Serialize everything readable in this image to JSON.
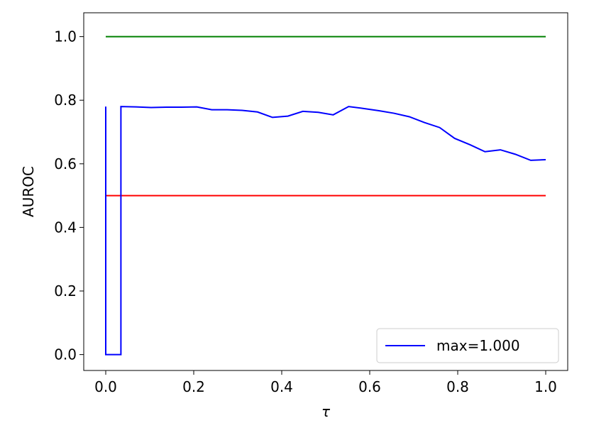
{
  "chart_data": {
    "type": "line",
    "xlabel": "τ",
    "ylabel": "AUROC",
    "xlim": [
      -0.05,
      1.05
    ],
    "ylim": [
      -0.05,
      1.075
    ],
    "xticks": [
      {
        "value": 0,
        "label": "0.0"
      },
      {
        "value": 0.2,
        "label": "0.2"
      },
      {
        "value": 0.4,
        "label": "0.4"
      },
      {
        "value": 0.6,
        "label": "0.6"
      },
      {
        "value": 0.8,
        "label": "0.8"
      },
      {
        "value": 1,
        "label": "1.0"
      }
    ],
    "yticks": [
      {
        "value": 0,
        "label": "0.0"
      },
      {
        "value": 0.2,
        "label": "0.2"
      },
      {
        "value": 0.4,
        "label": "0.4"
      },
      {
        "value": 0.6,
        "label": "0.6"
      },
      {
        "value": 0.8,
        "label": "0.8"
      },
      {
        "value": 1,
        "label": "1.0"
      }
    ],
    "series": [
      {
        "name": "max=1.000",
        "color": "#0000ff",
        "x": [
          0,
          0,
          0.0345,
          0.0345,
          0.069,
          0.103,
          0.138,
          0.172,
          0.207,
          0.241,
          0.276,
          0.31,
          0.345,
          0.379,
          0.414,
          0.448,
          0.483,
          0.517,
          0.552,
          0.586,
          0.621,
          0.655,
          0.69,
          0.724,
          0.759,
          0.793,
          0.828,
          0.862,
          0.897,
          0.931,
          0.966,
          1.0
        ],
        "values": [
          0.78,
          0,
          0,
          0.78,
          0.779,
          0.777,
          0.778,
          0.778,
          0.779,
          0.77,
          0.77,
          0.768,
          0.763,
          0.746,
          0.75,
          0.765,
          0.762,
          0.754,
          0.78,
          0.774,
          0.767,
          0.759,
          0.748,
          0.73,
          0.714,
          0.68,
          0.66,
          0.638,
          0.644,
          0.63,
          0.611,
          0.613
        ]
      }
    ],
    "reference_lines": [
      {
        "value": 1,
        "color": "#008000",
        "x": [
          0,
          1
        ]
      },
      {
        "value": 0.5,
        "color": "#ff0000",
        "x": [
          0,
          1
        ]
      }
    ],
    "legend": "lower right"
  }
}
